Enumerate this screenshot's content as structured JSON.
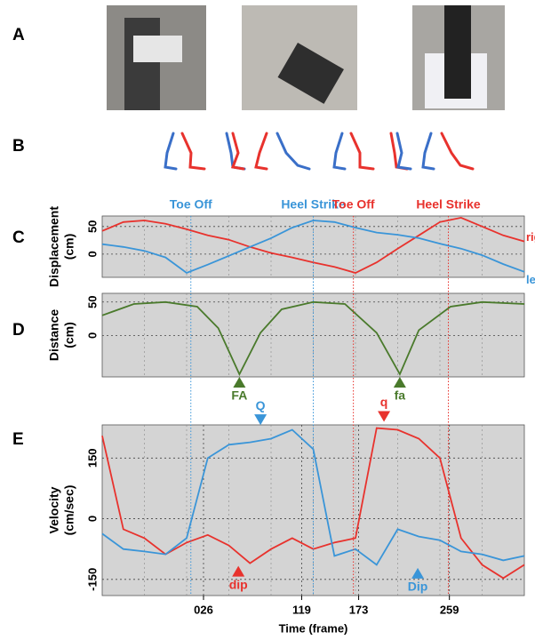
{
  "panel_labels": [
    "A",
    "B",
    "C",
    "D",
    "E"
  ],
  "chart_data": [
    {
      "type": "line",
      "ylabel": [
        "Displacement",
        "(cm)"
      ],
      "x": [
        -70,
        -50,
        -30,
        -10,
        10,
        30,
        50,
        70,
        90,
        110,
        130,
        150,
        170,
        190,
        210,
        230,
        250,
        270,
        290,
        310,
        330
      ],
      "xlim": [
        -70,
        330
      ],
      "ylim": [
        -42,
        69
      ],
      "yticks": [
        0,
        50
      ],
      "grid": true,
      "series": [
        {
          "name": "right",
          "color": "#e8322d",
          "values": [
            42,
            58,
            61,
            55,
            45,
            34,
            26,
            13,
            2,
            -6,
            -15,
            -23,
            -34,
            -15,
            10,
            34,
            58,
            66,
            50,
            34,
            23
          ]
        },
        {
          "name": "left",
          "color": "#3a95d8",
          "values": [
            18,
            13,
            6,
            -6,
            -34,
            -19,
            -3,
            13,
            29,
            48,
            61,
            58,
            48,
            39,
            35,
            29,
            19,
            10,
            -2,
            -18,
            -32
          ]
        }
      ],
      "events": [
        {
          "label": "Toe Off",
          "x": 14,
          "color": "#3a95d8"
        },
        {
          "label": "Heel Strike",
          "x": 130,
          "color": "#3a95d8"
        },
        {
          "label": "Toe Off",
          "x": 168,
          "color": "#e8322d"
        },
        {
          "label": "Heel Strike",
          "x": 258,
          "color": "#e8322d"
        }
      ]
    },
    {
      "type": "line",
      "ylabel": [
        "Distance",
        "(cm)"
      ],
      "x": [
        -70,
        -40,
        -10,
        20,
        40,
        60,
        80,
        100,
        130,
        160,
        190,
        212,
        230,
        260,
        290,
        330
      ],
      "xlim": [
        -70,
        330
      ],
      "ylim": [
        -62,
        63
      ],
      "yticks": [
        0,
        50
      ],
      "grid": true,
      "series": [
        {
          "color": "#4a7a2c",
          "values": [
            30,
            47,
            50,
            43,
            11,
            -58,
            4,
            39,
            50,
            47,
            4,
            -58,
            8,
            43,
            50,
            47
          ]
        }
      ],
      "annotations": [
        {
          "text": "FA",
          "x": 60,
          "y": -58,
          "color": "#4a7a2c",
          "direction": "up"
        },
        {
          "text": "fa",
          "x": 212,
          "y": -58,
          "color": "#4a7a2c",
          "direction": "up"
        }
      ]
    },
    {
      "type": "line",
      "ylabel": [
        "Velocity",
        "(cm/sec)"
      ],
      "xlabel": "Time (frame)",
      "x": [
        -70,
        -50,
        -30,
        -10,
        10,
        30,
        50,
        70,
        90,
        110,
        130,
        150,
        170,
        190,
        210,
        230,
        250,
        270,
        290,
        310,
        330
      ],
      "xlim": [
        -70,
        330
      ],
      "ylim": [
        -190,
        232
      ],
      "yticks": [
        -150,
        0,
        150
      ],
      "grid": true,
      "xticks": [
        {
          "value": 26,
          "label": "026"
        },
        119,
        173,
        259
      ],
      "series": [
        {
          "color": "#e8322d",
          "values": [
            205,
            -26,
            -48,
            -88,
            -59,
            -40,
            -66,
            -110,
            -75,
            -48,
            -75,
            -59,
            -48,
            224,
            220,
            198,
            150,
            -48,
            -114,
            -147,
            -114
          ]
        },
        {
          "color": "#3a95d8",
          "values": [
            -37,
            -75,
            -81,
            -88,
            -48,
            150,
            183,
            189,
            198,
            220,
            172,
            -92,
            -75,
            -114,
            -26,
            -44,
            -53,
            -81,
            -88,
            -103,
            -92
          ]
        }
      ],
      "annotations": [
        {
          "text": "Q",
          "x": 80,
          "y": 225,
          "color": "#3a95d8",
          "direction": "down"
        },
        {
          "text": "q",
          "x": 197,
          "y": 233,
          "color": "#e8322d",
          "direction": "down"
        },
        {
          "text": "dip",
          "x": 59,
          "y": -110,
          "color": "#e8322d",
          "direction": "up"
        },
        {
          "text": "Dip",
          "x": 229,
          "y": -115,
          "color": "#3a95d8",
          "direction": "up"
        }
      ]
    }
  ]
}
